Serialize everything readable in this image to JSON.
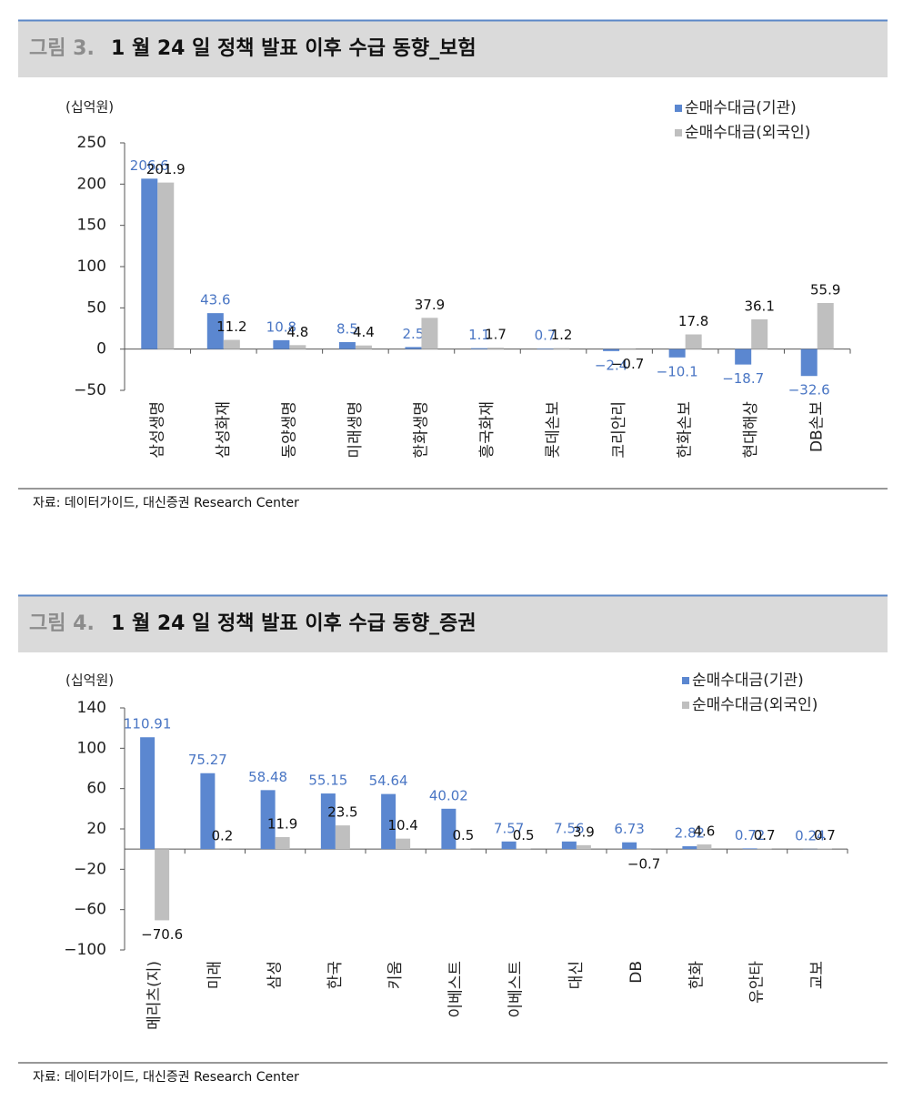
{
  "chart_data": [
    {
      "type": "bar",
      "figure_label": "그림 3.",
      "title": "1 월 24 일 정책 발표 이후 수급 동향_보험",
      "unit_label": "(십억원)",
      "source": "자료: 데이터가이드, 대신증권 Research Center",
      "categories": [
        "삼성생명",
        "삼성화재",
        "동양생명",
        "미래생명",
        "한화생명",
        "흥국화재",
        "롯데손보",
        "코리안리",
        "한화손보",
        "현대해상",
        "DB손보"
      ],
      "series": [
        {
          "name": "순매수대금(기관)",
          "color": "#5b87d0",
          "values": [
            206.6,
            43.6,
            10.8,
            8.5,
            2.5,
            1.1,
            0.7,
            -2.4,
            -10.1,
            -18.7,
            -32.6
          ],
          "value_labels": [
            "206.6",
            "43.6",
            "10.8",
            "8.5",
            "2.5",
            "1.1",
            "0.7",
            "−2.4",
            "−10.1",
            "−18.7",
            "−32.6"
          ]
        },
        {
          "name": "순매수대금(외국인)",
          "color": "#bfbfbf",
          "values": [
            201.9,
            11.2,
            4.8,
            4.4,
            37.9,
            1.7,
            1.2,
            -0.7,
            17.8,
            36.1,
            55.9
          ],
          "value_labels": [
            "201.9",
            "11.2",
            "4.8",
            "4.4",
            "37.9",
            "1.7",
            "1.2",
            "−0.7",
            "17.8",
            "36.1",
            "55.9"
          ]
        }
      ],
      "ylim": [
        -50,
        250
      ],
      "yticks": [
        {
          "value": -50,
          "label": "−50"
        },
        0,
        50,
        100,
        150,
        200,
        250
      ],
      "legend": "top-right"
    },
    {
      "type": "bar",
      "figure_label": "그림 4.",
      "title": "1 월 24 일 정책 발표 이후 수급 동향_증권",
      "unit_label": "(십억원)",
      "source": "자료: 데이터가이드, 대신증권 Research Center",
      "categories": [
        "메리츠(지)",
        "미래",
        "삼성",
        "한국",
        "키움",
        "이베스트",
        "이베스트",
        "대신",
        "DB",
        "한화",
        "유안타",
        "교보"
      ],
      "series": [
        {
          "name": "순매수대금(기관)",
          "color": "#5b87d0",
          "values": [
            110.91,
            75.27,
            58.48,
            55.15,
            54.64,
            40.02,
            7.57,
            7.56,
            6.73,
            2.82,
            0.72,
            0.24
          ]
        },
        {
          "name": "순매수대금(외국인)",
          "color": "#bfbfbf",
          "values": [
            -70.6,
            0.2,
            11.9,
            23.5,
            10.4,
            0.5,
            0.5,
            3.9,
            -0.7,
            4.6,
            0.7,
            0.7
          ],
          "value_labels": [
            "−70.6",
            "0.2",
            "11.9",
            "23.5",
            "10.4",
            "0.5",
            "0.5",
            "3.9",
            "−0.7",
            "4.6",
            "0.7",
            "0.7"
          ]
        }
      ],
      "ylim": [
        -100,
        140
      ],
      "yticks": [
        {
          "value": -100,
          "label": "−100"
        },
        {
          "value": -60,
          "label": "−60"
        },
        {
          "value": -20,
          "label": "−20"
        },
        20,
        60,
        100,
        140
      ],
      "legend": "top-right"
    }
  ]
}
